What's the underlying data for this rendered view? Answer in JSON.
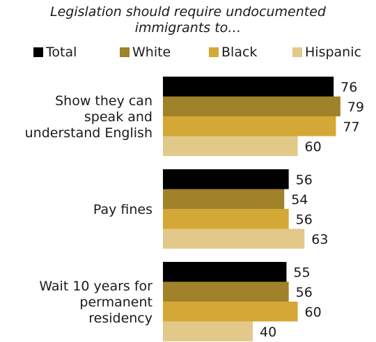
{
  "chart_data": {
    "type": "bar",
    "orientation": "horizontal",
    "title_lines": [
      "Legislation should require undocumented",
      "immigrants to…"
    ],
    "categories": [
      {
        "lines": [
          "Show they can",
          "speak and",
          "understand English"
        ]
      },
      {
        "lines": [
          "Pay fines"
        ]
      },
      {
        "lines": [
          "Wait 10 years for",
          "permanent",
          "residency"
        ]
      }
    ],
    "series": [
      {
        "name": "Total",
        "color": "#000000",
        "values": [
          76,
          56,
          55
        ]
      },
      {
        "name": "White",
        "color": "#a0822a",
        "values": [
          79,
          54,
          56
        ]
      },
      {
        "name": "Black",
        "color": "#d4a837",
        "values": [
          77,
          56,
          60
        ]
      },
      {
        "name": "Hispanic",
        "color": "#e2c989",
        "values": [
          60,
          63,
          40
        ]
      }
    ],
    "xlim": [
      0,
      100
    ],
    "grid": false,
    "legend_position": "top"
  }
}
